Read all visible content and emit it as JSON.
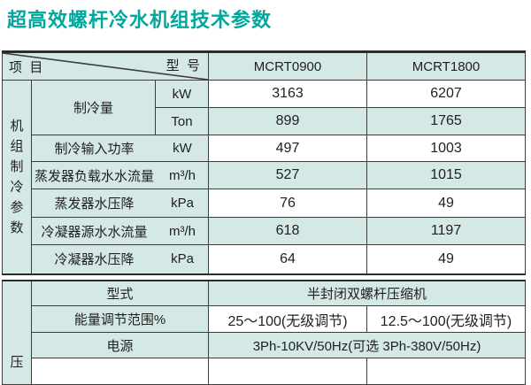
{
  "page": {
    "title": "超高效螺杆冷水机组技术参数",
    "title_color": "#00a79c"
  },
  "colors": {
    "row_fill_teal": "#d4e8e6",
    "row_fill_white": "#ffffff",
    "border": "#3c3c3c",
    "title_accent": "#00a79c"
  },
  "table": {
    "header": {
      "item_label": "项  目",
      "model_label": "型  号",
      "models": [
        "MCRT0900",
        "MCRT1800"
      ]
    },
    "unit_section": {
      "group_label": "机组制冷参数",
      "rows": [
        {
          "label": "制冷量",
          "unit": "kW",
          "values": [
            "3163",
            "6207"
          ]
        },
        {
          "label": "",
          "unit": "Ton",
          "values": [
            "899",
            "1765"
          ]
        },
        {
          "label": "制冷输入功率",
          "unit": "kW",
          "values": [
            "497",
            "1003"
          ]
        },
        {
          "label": "蒸发器负载水水流量",
          "unit": "m³/h",
          "values": [
            "527",
            "1015"
          ]
        },
        {
          "label": "蒸发器水压降",
          "unit": "kPa",
          "values": [
            "76",
            "49"
          ]
        },
        {
          "label": "冷凝器源水水流量",
          "unit": "m³/h",
          "values": [
            "618",
            "1197"
          ]
        },
        {
          "label": "冷凝器水压降",
          "unit": "kPa",
          "values": [
            "64",
            "49"
          ]
        }
      ]
    },
    "compressor_section": {
      "group_label_visible": "压",
      "rows": [
        {
          "label": "型式",
          "value_merged": "半封闭双螺杆压缩机"
        },
        {
          "label": "能量调节范围%",
          "values": [
            "25～100(无级调节)",
            "12.5～100(无级调节)"
          ]
        },
        {
          "label": "电源",
          "value_merged": "3Ph-10KV/50Hz(可选 3Ph-380V/50Hz)"
        }
      ]
    }
  }
}
